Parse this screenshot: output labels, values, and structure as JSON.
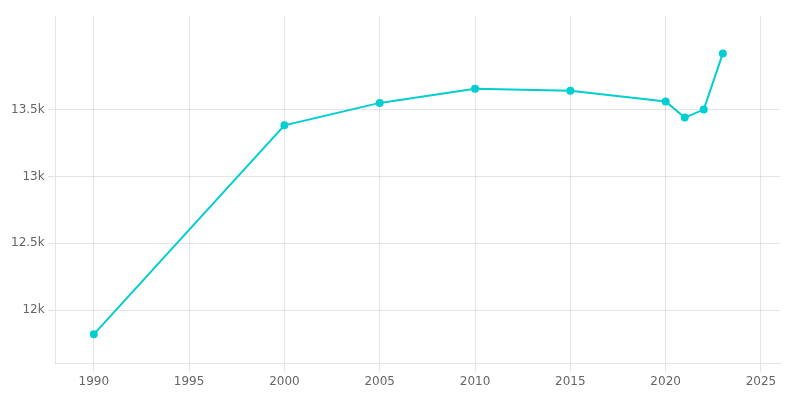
{
  "chart_data": {
    "type": "line",
    "x": [
      1990,
      2000,
      2005,
      2010,
      2015,
      2020,
      2021,
      2022,
      2023
    ],
    "values": [
      11819,
      13382,
      13550,
      13656,
      13640,
      13560,
      13440,
      13500,
      13920
    ],
    "color": "#00CED1",
    "marker": "circle",
    "xlim": [
      1988,
      2026
    ],
    "xticks": [
      1990,
      1995,
      2000,
      2005,
      2010,
      2015,
      2020,
      2025
    ],
    "ylim": [
      11600,
      14200
    ],
    "yticks": [
      {
        "value": 12000,
        "label": "12k"
      },
      {
        "value": 12500,
        "label": "12.5k"
      },
      {
        "value": 13000,
        "label": "13k"
      },
      {
        "value": 13500,
        "label": "13.5k"
      }
    ],
    "grid": true
  }
}
